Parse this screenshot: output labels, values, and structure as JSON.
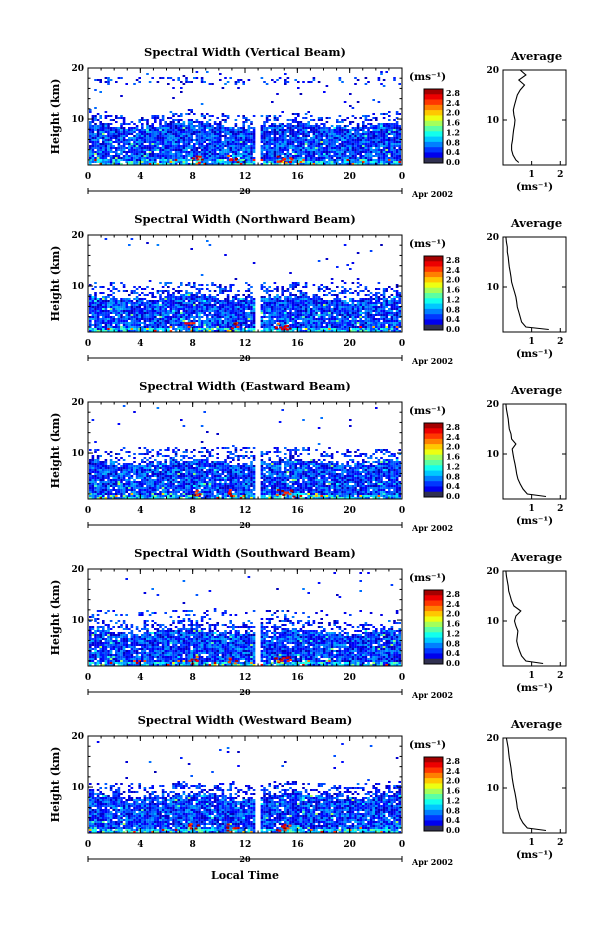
{
  "figure": {
    "x_axis_title": "Local Time",
    "height_label": "Height (km)",
    "unit_label": "(ms⁻¹)",
    "profile_title": "Average",
    "profile_xlabel": "(ms⁻¹)",
    "date_day": "20",
    "date_month_year": "Apr 2002",
    "colorbar_ticks": [
      "2.8",
      "2.4",
      "2.0",
      "1.6",
      "1.2",
      "0.8",
      "0.4",
      "0.0"
    ],
    "colors": {
      "low": "#1020c0",
      "mid": "#20a0ff",
      "high": "#ff2000",
      "background": "#ffffff"
    }
  },
  "chart_data": [
    {
      "type": "heatmap",
      "title": "Spectral Width (Vertical Beam)",
      "x_ticks": [
        "0",
        "4",
        "8",
        "12",
        "16",
        "20",
        "0"
      ],
      "x_range": [
        0,
        24
      ],
      "y_ticks": [
        "20",
        "10"
      ],
      "y_range": [
        1,
        20
      ],
      "colorbar_range": [
        0.0,
        2.8
      ],
      "data_gap_hours": [
        12.8,
        13.0
      ],
      "cloud_top_km": 9.0,
      "upper_layer_km": [
        17.0,
        18.5
      ],
      "average_profile": {
        "x_ticks": [
          "1",
          "2"
        ],
        "x_range": [
          0,
          2.2
        ],
        "y_ticks": [
          "20",
          "10"
        ],
        "height_km": [
          1.5,
          2,
          3,
          4,
          5,
          6,
          7,
          8,
          9,
          10,
          11,
          12,
          13,
          14,
          15,
          16,
          17,
          18,
          19,
          20
        ],
        "width_ms": [
          0.55,
          0.45,
          0.35,
          0.3,
          0.3,
          0.33,
          0.35,
          0.37,
          0.4,
          0.42,
          0.38,
          0.36,
          0.4,
          0.45,
          0.5,
          0.6,
          0.75,
          0.55,
          0.8,
          0.6
        ]
      }
    },
    {
      "type": "heatmap",
      "title": "Spectral Width (Northward Beam)",
      "x_ticks": [
        "0",
        "4",
        "8",
        "12",
        "16",
        "20",
        "0"
      ],
      "x_range": [
        0,
        24
      ],
      "y_ticks": [
        "20",
        "10"
      ],
      "y_range": [
        1,
        20
      ],
      "colorbar_range": [
        0.0,
        2.8
      ],
      "data_gap_hours": [
        12.8,
        13.0
      ],
      "cloud_top_km": 8.0,
      "upper_layer_km": [
        10.0,
        11.0
      ],
      "average_profile": {
        "x_ticks": [
          "1",
          "2"
        ],
        "x_range": [
          0,
          2.2
        ],
        "y_ticks": [
          "20",
          "10"
        ],
        "height_km": [
          1.5,
          2,
          3,
          4,
          5,
          6,
          7,
          8,
          9,
          10,
          11,
          12,
          13,
          14,
          15,
          16,
          17,
          18,
          19,
          20
        ],
        "width_ms": [
          1.6,
          0.8,
          0.65,
          0.6,
          0.55,
          0.5,
          0.48,
          0.45,
          0.4,
          0.35,
          0.3,
          0.28,
          0.25,
          0.22,
          0.2,
          0.18,
          0.15,
          0.15,
          0.12,
          0.1
        ]
      }
    },
    {
      "type": "heatmap",
      "title": "Spectral Width (Eastward Beam)",
      "x_ticks": [
        "0",
        "4",
        "8",
        "12",
        "16",
        "20",
        "0"
      ],
      "x_range": [
        0,
        24
      ],
      "y_ticks": [
        "20",
        "10"
      ],
      "y_range": [
        1,
        20
      ],
      "colorbar_range": [
        0.0,
        2.8
      ],
      "data_gap_hours": [
        12.8,
        13.0
      ],
      "cloud_top_km": 8.5,
      "upper_layer_km": [
        10.0,
        11.5
      ],
      "average_profile": {
        "x_ticks": [
          "1",
          "2"
        ],
        "x_range": [
          0,
          2.2
        ],
        "y_ticks": [
          "20",
          "10"
        ],
        "height_km": [
          1.5,
          2,
          3,
          4,
          5,
          6,
          7,
          8,
          9,
          10,
          11,
          12,
          13,
          14,
          15,
          16,
          17,
          18,
          19,
          20
        ],
        "width_ms": [
          1.5,
          0.85,
          0.7,
          0.6,
          0.52,
          0.48,
          0.45,
          0.42,
          0.38,
          0.35,
          0.32,
          0.45,
          0.3,
          0.28,
          0.22,
          0.2,
          0.18,
          0.15,
          0.12,
          0.1
        ]
      }
    },
    {
      "type": "heatmap",
      "title": "Spectral Width (Southward Beam)",
      "x_ticks": [
        "0",
        "4",
        "8",
        "12",
        "16",
        "20",
        "0"
      ],
      "x_range": [
        0,
        24
      ],
      "y_ticks": [
        "20",
        "10"
      ],
      "y_range": [
        1,
        20
      ],
      "colorbar_range": [
        0.0,
        2.8
      ],
      "data_gap_hours": [
        12.8,
        13.0
      ],
      "cloud_top_km": 8.0,
      "upper_layer_km": [
        11.0,
        12.0
      ],
      "average_profile": {
        "x_ticks": [
          "1",
          "2"
        ],
        "x_range": [
          0,
          2.2
        ],
        "y_ticks": [
          "20",
          "10"
        ],
        "height_km": [
          1.5,
          2,
          3,
          4,
          5,
          6,
          7,
          8,
          9,
          10,
          11,
          12,
          13,
          14,
          15,
          16,
          17,
          18,
          19,
          20
        ],
        "width_ms": [
          1.4,
          0.8,
          0.65,
          0.58,
          0.52,
          0.48,
          0.5,
          0.52,
          0.45,
          0.4,
          0.45,
          0.62,
          0.38,
          0.3,
          0.25,
          0.2,
          0.18,
          0.15,
          0.12,
          0.1
        ]
      }
    },
    {
      "type": "heatmap",
      "title": "Spectral Width (Westward Beam)",
      "x_ticks": [
        "0",
        "4",
        "8",
        "12",
        "16",
        "20",
        "0"
      ],
      "x_range": [
        0,
        24
      ],
      "y_ticks": [
        "20",
        "10"
      ],
      "y_range": [
        1,
        20
      ],
      "colorbar_range": [
        0.0,
        2.8
      ],
      "data_gap_hours": [
        12.8,
        13.0
      ],
      "cloud_top_km": 8.5,
      "upper_layer_km": [
        10.0,
        11.0
      ],
      "average_profile": {
        "x_ticks": [
          "1",
          "2"
        ],
        "x_range": [
          0,
          2.2
        ],
        "y_ticks": [
          "20",
          "10"
        ],
        "height_km": [
          1.5,
          2,
          3,
          4,
          5,
          6,
          7,
          8,
          9,
          10,
          11,
          12,
          13,
          14,
          15,
          16,
          17,
          18,
          19,
          20
        ],
        "width_ms": [
          1.5,
          0.85,
          0.7,
          0.6,
          0.55,
          0.5,
          0.48,
          0.45,
          0.42,
          0.38,
          0.35,
          0.32,
          0.3,
          0.28,
          0.25,
          0.22,
          0.2,
          0.18,
          0.15,
          0.12
        ]
      }
    }
  ]
}
